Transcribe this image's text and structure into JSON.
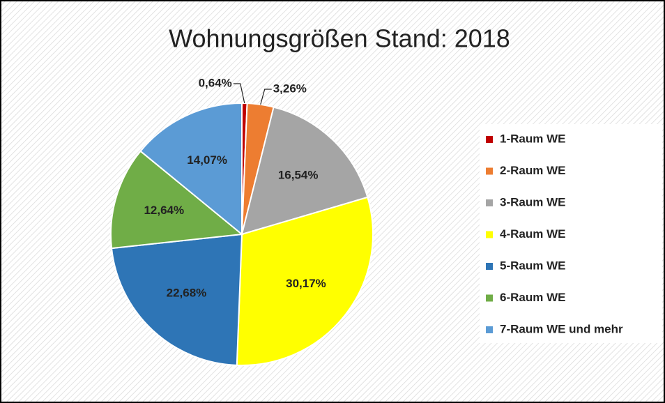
{
  "chart_data": {
    "type": "pie",
    "title": "Wohnungsgrößen Stand: 2018",
    "categories": [
      "1-Raum WE",
      "2-Raum WE",
      "3-Raum WE",
      "4-Raum WE",
      "5-Raum WE",
      "6-Raum WE",
      "7-Raum WE und mehr"
    ],
    "values": [
      0.64,
      3.26,
      16.54,
      30.17,
      22.68,
      12.64,
      14.07
    ],
    "value_labels": [
      "0,64%",
      "3,26%",
      "16,54%",
      "30,17%",
      "22,68%",
      "12,64%",
      "14,07%"
    ],
    "colors": [
      "#c00000",
      "#ed7d31",
      "#a5a5a5",
      "#ffff00",
      "#2e75b6",
      "#70ad47",
      "#5b9bd5"
    ],
    "legend": "right"
  }
}
